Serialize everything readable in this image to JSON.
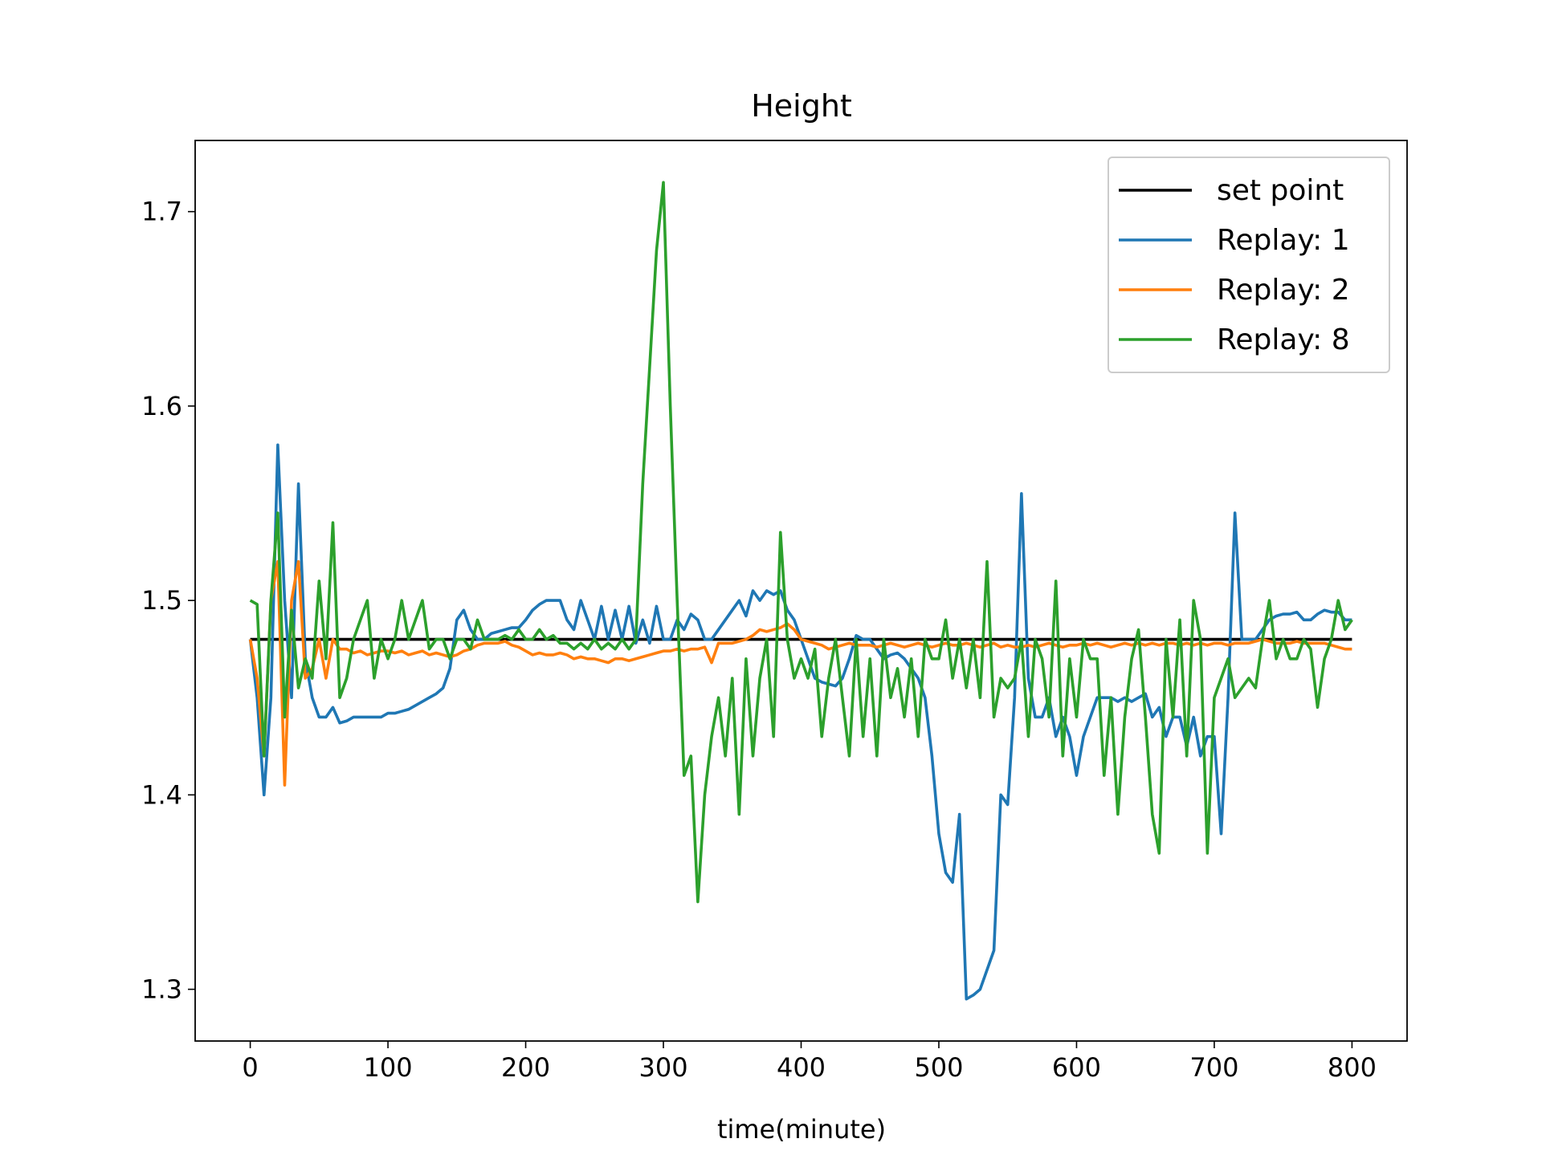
{
  "chart_data": {
    "type": "line",
    "title": "Height",
    "x_label": "time(minute)",
    "xlim": [
      -40,
      840
    ],
    "ylim": [
      1.2734,
      1.7366
    ],
    "xticks": [
      0,
      100,
      200,
      300,
      400,
      500,
      600,
      700,
      800
    ],
    "yticks": [
      1.3,
      1.4,
      1.5,
      1.6,
      1.7
    ],
    "grid": false,
    "legend": "upper right",
    "x": [
      0,
      5,
      10,
      15,
      20,
      25,
      30,
      35,
      40,
      45,
      50,
      55,
      60,
      65,
      70,
      75,
      80,
      85,
      90,
      95,
      100,
      105,
      110,
      115,
      120,
      125,
      130,
      135,
      140,
      145,
      150,
      155,
      160,
      165,
      170,
      175,
      180,
      185,
      190,
      195,
      200,
      205,
      210,
      215,
      220,
      225,
      230,
      235,
      240,
      245,
      250,
      255,
      260,
      265,
      270,
      275,
      280,
      285,
      290,
      295,
      300,
      305,
      310,
      315,
      320,
      325,
      330,
      335,
      340,
      345,
      350,
      355,
      360,
      365,
      370,
      375,
      380,
      385,
      390,
      395,
      400,
      405,
      410,
      415,
      420,
      425,
      430,
      435,
      440,
      445,
      450,
      455,
      460,
      465,
      470,
      475,
      480,
      485,
      490,
      495,
      500,
      505,
      510,
      515,
      520,
      525,
      530,
      535,
      540,
      545,
      550,
      555,
      560,
      565,
      570,
      575,
      580,
      585,
      590,
      595,
      600,
      605,
      610,
      615,
      620,
      625,
      630,
      635,
      640,
      645,
      650,
      655,
      660,
      665,
      670,
      675,
      680,
      685,
      690,
      695,
      700,
      705,
      710,
      715,
      720,
      725,
      730,
      735,
      740,
      745,
      750,
      755,
      760,
      765,
      770,
      775,
      780,
      785,
      790,
      795,
      800
    ],
    "series": [
      {
        "name": "set point",
        "color": "#000000",
        "x": [
          0,
          800
        ],
        "values": [
          1.48,
          1.48
        ]
      },
      {
        "name": "Replay: 1",
        "color": "#1f77b4",
        "values": [
          1.48,
          1.45,
          1.4,
          1.45,
          1.58,
          1.5,
          1.45,
          1.56,
          1.47,
          1.45,
          1.44,
          1.44,
          1.445,
          1.437,
          1.438,
          1.44,
          1.44,
          1.44,
          1.44,
          1.44,
          1.442,
          1.442,
          1.443,
          1.444,
          1.446,
          1.448,
          1.45,
          1.452,
          1.455,
          1.465,
          1.49,
          1.495,
          1.485,
          1.48,
          1.48,
          1.483,
          1.484,
          1.485,
          1.486,
          1.486,
          1.49,
          1.495,
          1.498,
          1.5,
          1.5,
          1.5,
          1.49,
          1.485,
          1.5,
          1.49,
          1.48,
          1.497,
          1.48,
          1.495,
          1.48,
          1.497,
          1.478,
          1.49,
          1.478,
          1.497,
          1.48,
          1.48,
          1.49,
          1.485,
          1.493,
          1.49,
          1.48,
          1.48,
          1.485,
          1.49,
          1.495,
          1.5,
          1.492,
          1.505,
          1.5,
          1.505,
          1.503,
          1.505,
          1.495,
          1.49,
          1.48,
          1.47,
          1.46,
          1.458,
          1.457,
          1.456,
          1.46,
          1.47,
          1.482,
          1.48,
          1.48,
          1.475,
          1.47,
          1.472,
          1.473,
          1.47,
          1.465,
          1.46,
          1.45,
          1.42,
          1.38,
          1.36,
          1.355,
          1.39,
          1.295,
          1.297,
          1.3,
          1.31,
          1.32,
          1.4,
          1.395,
          1.45,
          1.555,
          1.46,
          1.44,
          1.44,
          1.45,
          1.43,
          1.44,
          1.43,
          1.41,
          1.43,
          1.44,
          1.45,
          1.45,
          1.45,
          1.448,
          1.45,
          1.448,
          1.45,
          1.452,
          1.44,
          1.445,
          1.43,
          1.44,
          1.44,
          1.425,
          1.44,
          1.42,
          1.43,
          1.43,
          1.38,
          1.45,
          1.545,
          1.48,
          1.48,
          1.48,
          1.485,
          1.49,
          1.492,
          1.493,
          1.493,
          1.494,
          1.49,
          1.49,
          1.493,
          1.495,
          1.494,
          1.494,
          1.49,
          1.49
        ]
      },
      {
        "name": "Replay: 2",
        "color": "#ff7f0e",
        "values": [
          1.48,
          1.46,
          1.42,
          1.5,
          1.52,
          1.405,
          1.5,
          1.52,
          1.46,
          1.465,
          1.48,
          1.46,
          1.48,
          1.475,
          1.475,
          1.473,
          1.474,
          1.472,
          1.473,
          1.474,
          1.474,
          1.473,
          1.474,
          1.472,
          1.473,
          1.474,
          1.472,
          1.473,
          1.472,
          1.471,
          1.472,
          1.474,
          1.475,
          1.477,
          1.478,
          1.478,
          1.478,
          1.479,
          1.477,
          1.476,
          1.474,
          1.472,
          1.473,
          1.472,
          1.472,
          1.473,
          1.472,
          1.47,
          1.471,
          1.47,
          1.47,
          1.469,
          1.468,
          1.47,
          1.47,
          1.469,
          1.47,
          1.471,
          1.472,
          1.473,
          1.474,
          1.474,
          1.475,
          1.474,
          1.475,
          1.475,
          1.476,
          1.468,
          1.478,
          1.478,
          1.478,
          1.479,
          1.48,
          1.482,
          1.485,
          1.484,
          1.485,
          1.486,
          1.488,
          1.485,
          1.48,
          1.479,
          1.478,
          1.477,
          1.475,
          1.476,
          1.477,
          1.478,
          1.477,
          1.477,
          1.477,
          1.476,
          1.477,
          1.478,
          1.477,
          1.476,
          1.477,
          1.478,
          1.477,
          1.476,
          1.477,
          1.478,
          1.477,
          1.477,
          1.478,
          1.477,
          1.476,
          1.477,
          1.478,
          1.476,
          1.477,
          1.476,
          1.476,
          1.477,
          1.476,
          1.477,
          1.478,
          1.477,
          1.476,
          1.477,
          1.477,
          1.478,
          1.477,
          1.478,
          1.477,
          1.476,
          1.477,
          1.478,
          1.477,
          1.478,
          1.477,
          1.478,
          1.477,
          1.478,
          1.478,
          1.477,
          1.478,
          1.477,
          1.478,
          1.477,
          1.478,
          1.478,
          1.477,
          1.478,
          1.478,
          1.478,
          1.479,
          1.48,
          1.479,
          1.478,
          1.478,
          1.478,
          1.479,
          1.478,
          1.478,
          1.478,
          1.478,
          1.477,
          1.476,
          1.475,
          1.475
        ]
      },
      {
        "name": "Replay: 8",
        "color": "#2ca02c",
        "values": [
          1.5,
          1.498,
          1.42,
          1.5,
          1.545,
          1.44,
          1.495,
          1.455,
          1.47,
          1.46,
          1.51,
          1.47,
          1.54,
          1.45,
          1.46,
          1.48,
          1.49,
          1.5,
          1.46,
          1.48,
          1.47,
          1.48,
          1.5,
          1.48,
          1.49,
          1.5,
          1.475,
          1.48,
          1.48,
          1.47,
          1.48,
          1.48,
          1.475,
          1.49,
          1.48,
          1.48,
          1.48,
          1.482,
          1.48,
          1.485,
          1.48,
          1.48,
          1.485,
          1.48,
          1.482,
          1.478,
          1.478,
          1.475,
          1.478,
          1.475,
          1.48,
          1.475,
          1.478,
          1.475,
          1.48,
          1.475,
          1.48,
          1.56,
          1.62,
          1.68,
          1.715,
          1.6,
          1.5,
          1.41,
          1.42,
          1.345,
          1.4,
          1.43,
          1.45,
          1.42,
          1.46,
          1.39,
          1.47,
          1.42,
          1.46,
          1.48,
          1.43,
          1.535,
          1.48,
          1.46,
          1.47,
          1.46,
          1.475,
          1.43,
          1.46,
          1.48,
          1.45,
          1.42,
          1.48,
          1.43,
          1.47,
          1.42,
          1.48,
          1.45,
          1.465,
          1.44,
          1.47,
          1.43,
          1.48,
          1.47,
          1.47,
          1.49,
          1.46,
          1.48,
          1.455,
          1.48,
          1.45,
          1.52,
          1.44,
          1.46,
          1.455,
          1.46,
          1.48,
          1.43,
          1.48,
          1.47,
          1.44,
          1.51,
          1.42,
          1.47,
          1.44,
          1.48,
          1.47,
          1.47,
          1.41,
          1.45,
          1.39,
          1.44,
          1.47,
          1.485,
          1.44,
          1.39,
          1.37,
          1.48,
          1.44,
          1.49,
          1.42,
          1.5,
          1.48,
          1.37,
          1.45,
          1.46,
          1.47,
          1.45,
          1.455,
          1.46,
          1.455,
          1.48,
          1.5,
          1.47,
          1.48,
          1.47,
          1.47,
          1.48,
          1.475,
          1.445,
          1.47,
          1.48,
          1.5,
          1.485,
          1.49
        ]
      }
    ]
  }
}
